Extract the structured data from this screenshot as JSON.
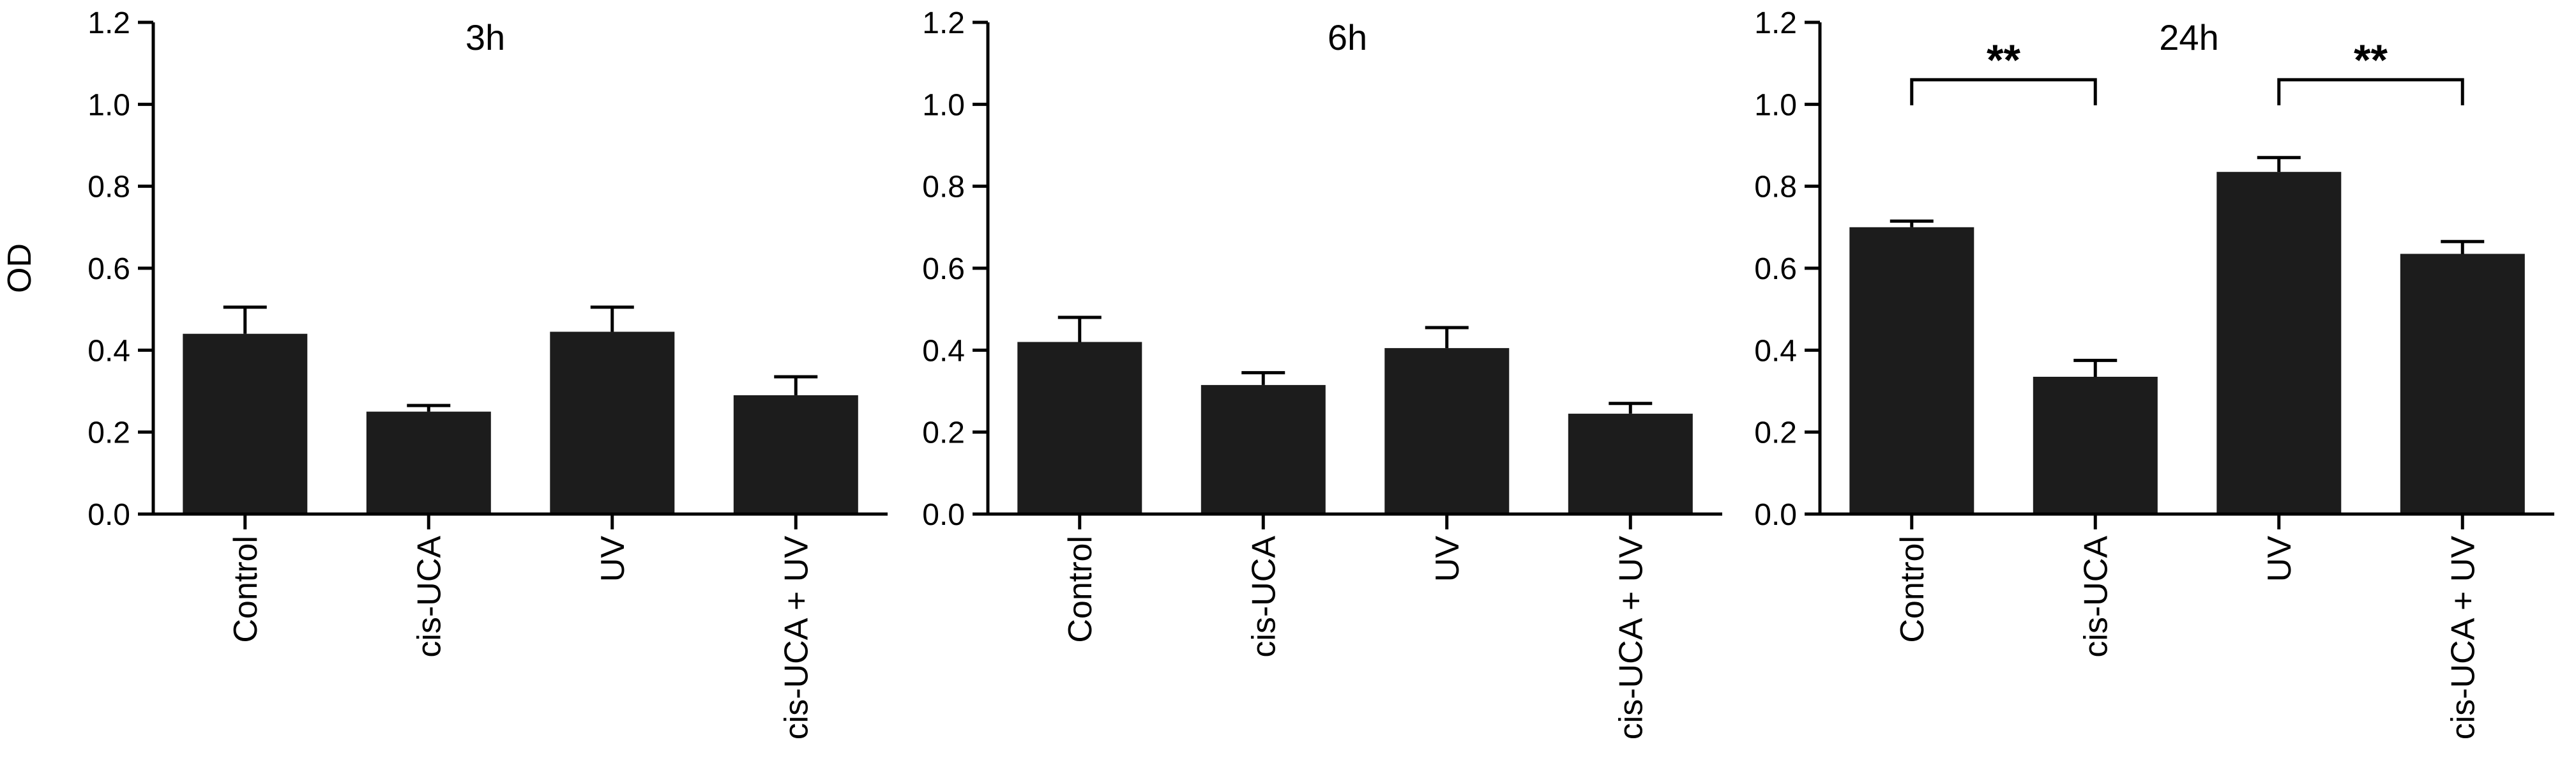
{
  "chart_data": [
    {
      "type": "bar",
      "title": "3h",
      "ylabel": "OD",
      "ylim": [
        0,
        1.2
      ],
      "yticks": [
        "0.0",
        "0.2",
        "0.4",
        "0.6",
        "0.8",
        "1.0",
        "1.2"
      ],
      "categories": [
        "Control",
        "cis-UCA",
        "UV",
        "cis-UCA + UV"
      ],
      "values": [
        0.44,
        0.25,
        0.445,
        0.29
      ],
      "errors": [
        0.065,
        0.015,
        0.06,
        0.045
      ],
      "significance": []
    },
    {
      "type": "bar",
      "title": "6h",
      "ylabel": "",
      "ylim": [
        0,
        1.2
      ],
      "yticks": [
        "0.0",
        "0.2",
        "0.4",
        "0.6",
        "0.8",
        "1.0",
        "1.2"
      ],
      "categories": [
        "Control",
        "cis-UCA",
        "UV",
        "cis-UCA + UV"
      ],
      "values": [
        0.42,
        0.315,
        0.405,
        0.245
      ],
      "errors": [
        0.06,
        0.03,
        0.05,
        0.025
      ],
      "significance": []
    },
    {
      "type": "bar",
      "title": "24h",
      "ylabel": "",
      "ylim": [
        0,
        1.2
      ],
      "yticks": [
        "0.0",
        "0.2",
        "0.4",
        "0.6",
        "0.8",
        "1.0",
        "1.2"
      ],
      "categories": [
        "Control",
        "cis-UCA",
        "UV",
        "cis-UCA + UV"
      ],
      "values": [
        0.7,
        0.335,
        0.835,
        0.635
      ],
      "errors": [
        0.015,
        0.04,
        0.035,
        0.03
      ],
      "significance": [
        {
          "from": 0,
          "to": 1,
          "y": 1.06,
          "label": "**"
        },
        {
          "from": 2,
          "to": 3,
          "y": 1.06,
          "label": "**"
        }
      ]
    }
  ],
  "colors": {
    "bar": "#1c1c1c",
    "axis": "#000000"
  }
}
